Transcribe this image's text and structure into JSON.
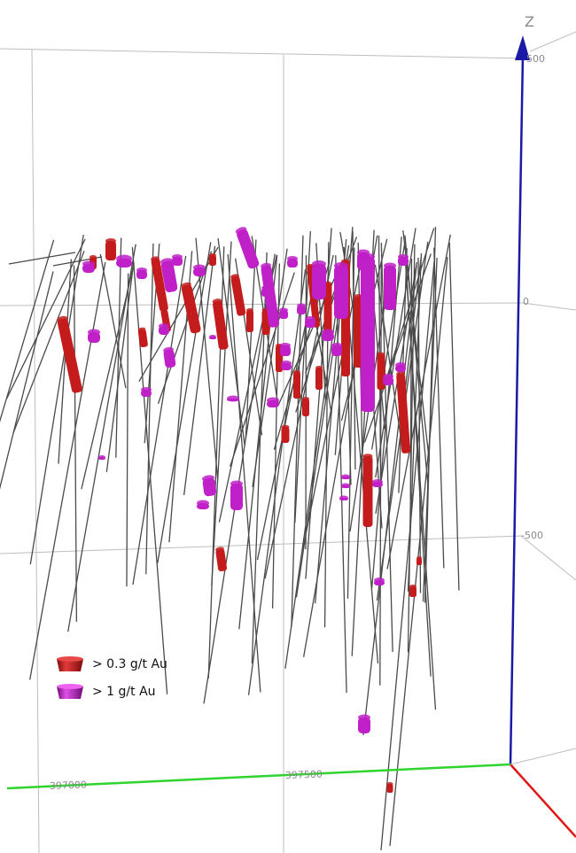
{
  "scene": {
    "axis_z_label": "Z",
    "z_ticks": [
      "500",
      "0",
      "-500"
    ],
    "x_ticks": [
      "397000",
      "397500"
    ],
    "axis_colors": {
      "z": "#1a1aa6",
      "x": "#2fd42f",
      "y": "#e01818"
    },
    "colors": {
      "low_grade": "#c41c1c",
      "high_grade": "#c020c8",
      "drillhole": "#4a4a4a",
      "grid": "#bdbdbd"
    }
  },
  "legend": {
    "items": [
      {
        "label": "> 0.3 g/t Au",
        "icon": "red-cylinder-icon"
      },
      {
        "label": "> 1 g/t Au",
        "icon": "magenta-cylinder-icon"
      }
    ]
  }
}
